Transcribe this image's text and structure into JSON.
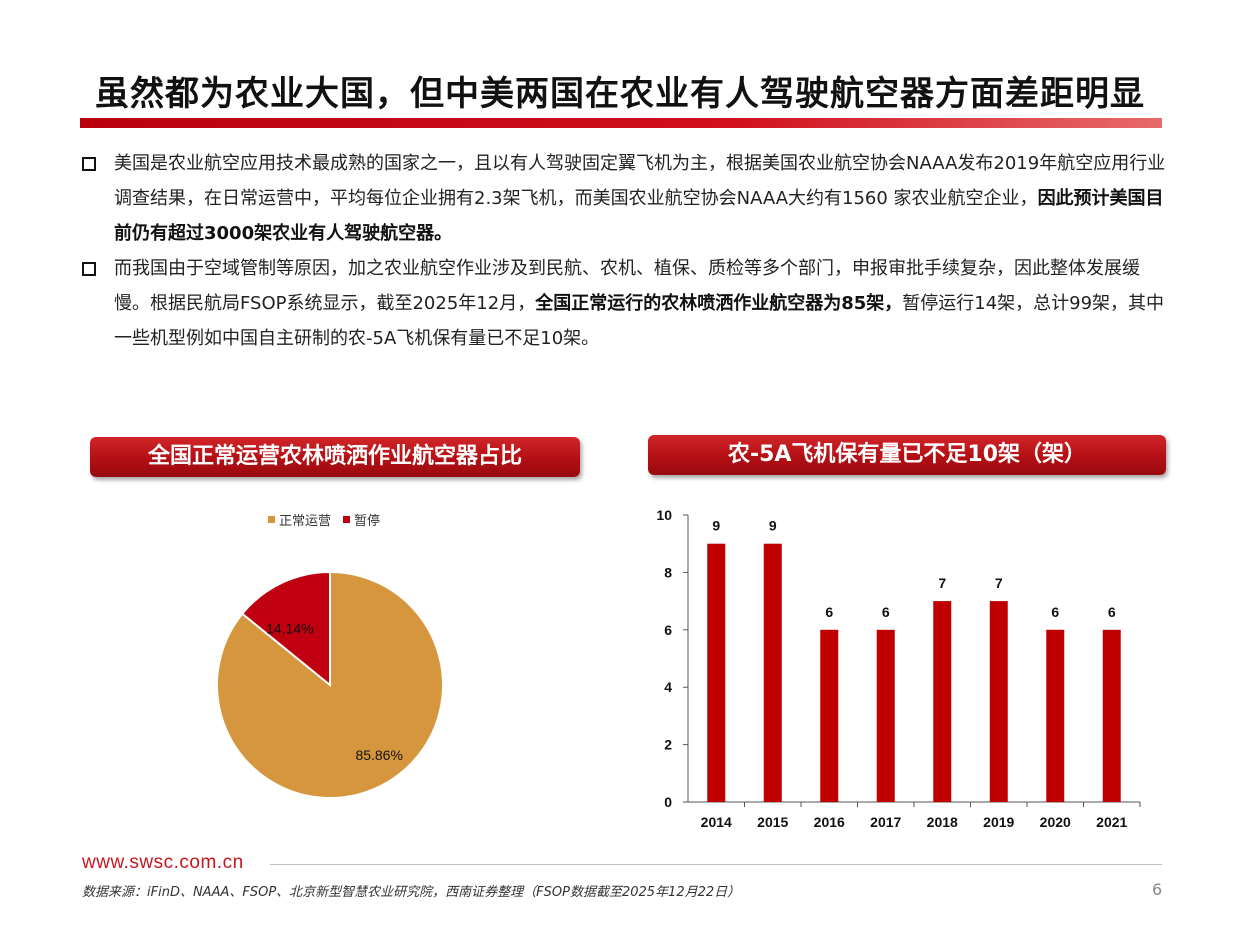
{
  "title": "虽然都为农业大国，但中美两国在农业有人驾驶航空器方面差距明显",
  "bullets": [
    {
      "text": "美国是农业航空应用技术最成熟的国家之一，且以有人驾驶固定翼飞机为主，根据美国农业航空协会NAAA发布2019年航空应用行业调查结果，在日常运营中，平均每位企业拥有2.3架飞机，而美国农业航空协会NAAA大约有1560 家农业航空企业，",
      "bold": "因此预计美国目前仍有超过3000架农业有人驾驶航空器。",
      "tail": ""
    },
    {
      "text": "而我国由于空域管制等原因，加之农业航空作业涉及到民航、农机、植保、质检等多个部门，申报审批手续复杂，因此整体发展缓慢。根据民航局FSOP系统显示，截至2025年12月，",
      "bold": "全国正常运行的农林喷洒作业航空器为85架，",
      "tail": "暂停运行14架，总计99架，其中一些机型例如中国自主研制的农-5A飞机保有量已不足10架。"
    }
  ],
  "pie_panel_title": "全国正常运营农林喷洒作业航空器占比",
  "bar_panel_title": "农-5A飞机保有量已不足10架（架）",
  "colors": {
    "accent": "#c00000",
    "pie_main": "#d6963e",
    "pie_minor": "#c00010",
    "bar": "#c00000"
  },
  "chart_data": [
    {
      "type": "pie",
      "slices": [
        {
          "name": "正常运营",
          "value": 85.86,
          "label": "85.86%"
        },
        {
          "name": "暂停",
          "value": 14.14,
          "label": "14.14%"
        }
      ]
    },
    {
      "type": "bar",
      "categories": [
        "2014",
        "2015",
        "2016",
        "2017",
        "2018",
        "2019",
        "2020",
        "2021"
      ],
      "values": [
        9,
        9,
        6,
        6,
        7,
        7,
        6,
        6
      ],
      "ylim": [
        0,
        10
      ],
      "yticks": [
        0,
        2,
        4,
        6,
        8,
        10
      ],
      "grid": false
    }
  ],
  "footer": {
    "url": "www.swsc.com.cn",
    "source": "数据来源：iFinD、NAAA、FSOP、北京新型智慧农业研究院，西南证券整理（FSOP数据截至2025年12月22日）",
    "page": "6"
  }
}
